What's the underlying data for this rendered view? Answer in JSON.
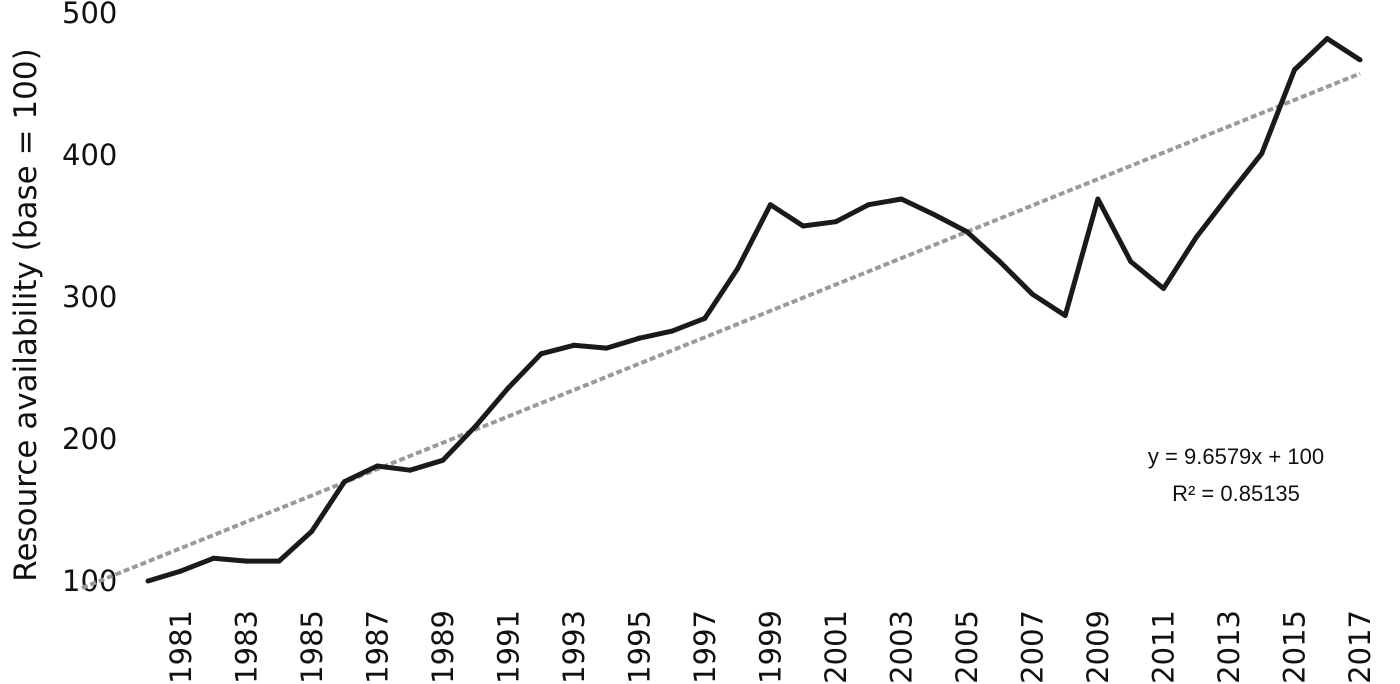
{
  "chart_data": {
    "type": "line",
    "ylabel": "Resource availability (base = 100)",
    "xlabel": "",
    "ylim": [
      100,
      500
    ],
    "yticks": [
      "100",
      "200",
      "300",
      "400",
      "500"
    ],
    "xticks": [
      "1981",
      "1983",
      "1985",
      "1987",
      "1989",
      "1991",
      "1993",
      "1995",
      "1997",
      "1999",
      "2001",
      "2003",
      "2005",
      "2007",
      "2009",
      "2011",
      "2013",
      "2015",
      "2017"
    ],
    "grid": false,
    "legend": "none",
    "series": [
      {
        "x": [
          1980,
          1981,
          1982,
          1983,
          1984,
          1985,
          1986,
          1987,
          1988,
          1989,
          1990,
          1991,
          1992,
          1993,
          1994,
          1995,
          1996,
          1997,
          1998,
          1999,
          2000,
          2001,
          2002,
          2003,
          2004,
          2005,
          2006,
          2007,
          2008,
          2009,
          2010,
          2011,
          2012,
          2013,
          2014,
          2015,
          2016,
          2017
        ],
        "values": [
          100,
          107,
          116,
          114,
          114,
          135,
          170,
          181,
          178,
          185,
          209,
          236,
          260,
          266,
          264,
          271,
          276,
          285,
          320,
          365,
          350,
          353,
          365,
          369,
          358,
          346,
          325,
          302,
          287,
          369,
          325,
          306,
          342,
          372,
          401,
          460,
          482,
          467
        ],
        "color": "#1a1a1a"
      }
    ],
    "trendline": {
      "type": "linear",
      "equation": "y = 9.6579x + 100",
      "r_squared_label": "R² = 0.85135",
      "slope": 9.6579,
      "intercept": 100,
      "color": "#9a9a9a"
    }
  }
}
